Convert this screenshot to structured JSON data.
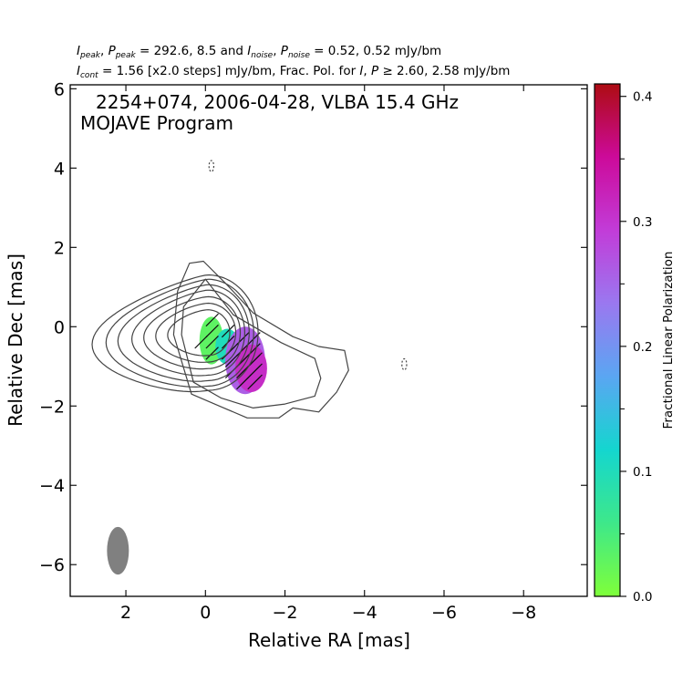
{
  "header": {
    "line1": {
      "sym_peak": "I",
      "sub_peak": "peak",
      "sym_ppeak": "P",
      "sub_ppeak": "peak",
      "peak_vals": " = 292.6, 8.5 and ",
      "sym_noise": "I",
      "sub_noise": "noise",
      "sym_pnoise": "P",
      "sub_pnoise": "noise",
      "noise_vals": " = 0.52, 0.52 mJy/bm"
    },
    "line2": {
      "sym_cont": "I",
      "sub_cont": "cont",
      "cont_text": " = 1.56 [x2.0 steps] mJy/bm, Frac. Pol. for ",
      "sym_i": "I",
      "sep": ", ",
      "sym_p": "P",
      "ge": " ≥ 2.60, 2.58 mJy/bm"
    }
  },
  "chart_data": {
    "type": "heatmap",
    "annotation_line1": "2254+074, 2006-04-28, VLBA 15.4 GHz",
    "annotation_line2": "MOJAVE Program",
    "xlabel": "Relative RA [mas]",
    "ylabel": "Relative Dec [mas]",
    "xlim": [
      3.4,
      -9.6
    ],
    "ylim": [
      -6.8,
      6.1
    ],
    "x_ticks": [
      2,
      0,
      -2,
      -4,
      -6,
      -8
    ],
    "x_tick_labels": [
      "2",
      "0",
      "−2",
      "−4",
      "−6",
      "−8"
    ],
    "y_ticks": [
      6,
      4,
      2,
      0,
      -2,
      -4,
      -6
    ],
    "y_tick_labels": [
      "6",
      "4",
      "2",
      "0",
      "−2",
      "−4",
      "−6"
    ],
    "colorbar": {
      "label": "Fractional Linear Polarization",
      "range": [
        0.0,
        0.41
      ],
      "ticks": [
        0.0,
        0.1,
        0.2,
        0.3,
        0.4
      ],
      "tick_labels": [
        "0.0",
        "0.1",
        "0.2",
        "0.3",
        "0.4"
      ],
      "colors": [
        "#7fff3a",
        "#3ee88a",
        "#14d6cf",
        "#5aa6f2",
        "#9a78f0",
        "#c23cd8",
        "#cc0a9a",
        "#ad0c12"
      ]
    },
    "contours": {
      "base_mJy_per_beam": 1.56,
      "step_factor": 2.0,
      "center": [
        -0.05,
        -0.15
      ],
      "levels": [
        {
          "ax": 0.75,
          "ay": 1.05,
          "ex": 0.25
        },
        {
          "ax": 0.95,
          "ay": 1.35,
          "ex": 0.35
        },
        {
          "ax": 1.1,
          "ay": 1.65,
          "ex": 0.5
        },
        {
          "ax": 1.25,
          "ay": 1.95,
          "ex": 0.65
        },
        {
          "ax": 1.4,
          "ay": 2.2,
          "ex": 0.85
        },
        {
          "ax": 1.55,
          "ay": 2.45,
          "ex": 1.0
        },
        {
          "ax": 1.7,
          "ay": 2.65,
          "ex": 1.2
        }
      ],
      "outer_outline": [
        [
          0.7,
          0.9
        ],
        [
          0.4,
          1.6
        ],
        [
          0.05,
          1.65
        ],
        [
          -0.5,
          1.1
        ],
        [
          -1.2,
          0.35
        ],
        [
          -2.2,
          -0.25
        ],
        [
          -2.85,
          -0.5
        ],
        [
          -3.5,
          -0.6
        ],
        [
          -3.6,
          -1.1
        ],
        [
          -3.3,
          -1.65
        ],
        [
          -2.85,
          -2.15
        ],
        [
          -2.2,
          -2.05
        ],
        [
          -1.85,
          -2.3
        ],
        [
          -1.05,
          -2.3
        ],
        [
          -0.35,
          -2.0
        ],
        [
          0.35,
          -1.7
        ],
        [
          0.8,
          -0.2
        ]
      ],
      "secondary_outline": [
        [
          0.55,
          0.5
        ],
        [
          0.0,
          1.2
        ],
        [
          -0.7,
          0.3
        ],
        [
          -1.9,
          -0.4
        ],
        [
          -2.75,
          -0.8
        ],
        [
          -2.9,
          -1.3
        ],
        [
          -2.75,
          -1.75
        ],
        [
          -2.0,
          -1.95
        ],
        [
          -1.2,
          -2.05
        ],
        [
          -0.4,
          -1.8
        ],
        [
          0.3,
          -1.4
        ],
        [
          0.6,
          -0.2
        ]
      ],
      "negative_islands": [
        [
          -0.15,
          4.05
        ],
        [
          -5.0,
          -0.95
        ]
      ]
    },
    "polarization_regions": [
      {
        "name": "core",
        "x": -0.15,
        "y": -0.35,
        "rx": 0.3,
        "ry": 0.6,
        "frac_pol": 0.03
      },
      {
        "name": "core-outer",
        "x": -0.55,
        "y": -0.5,
        "rx": 0.3,
        "ry": 0.45,
        "frac_pol": 0.1
      },
      {
        "name": "jet-knot-a",
        "x": -1.0,
        "y": -0.85,
        "rx": 0.5,
        "ry": 0.85,
        "frac_pol": 0.26
      },
      {
        "name": "jet-knot-b",
        "x": -1.15,
        "y": -1.05,
        "rx": 0.4,
        "ry": 0.6,
        "frac_pol": 0.31
      }
    ],
    "evpa_angle_deg": 45,
    "beam": {
      "x": 2.2,
      "y": -5.65,
      "major_mas": 1.2,
      "minor_mas": 0.55,
      "pa_deg": 0
    }
  }
}
